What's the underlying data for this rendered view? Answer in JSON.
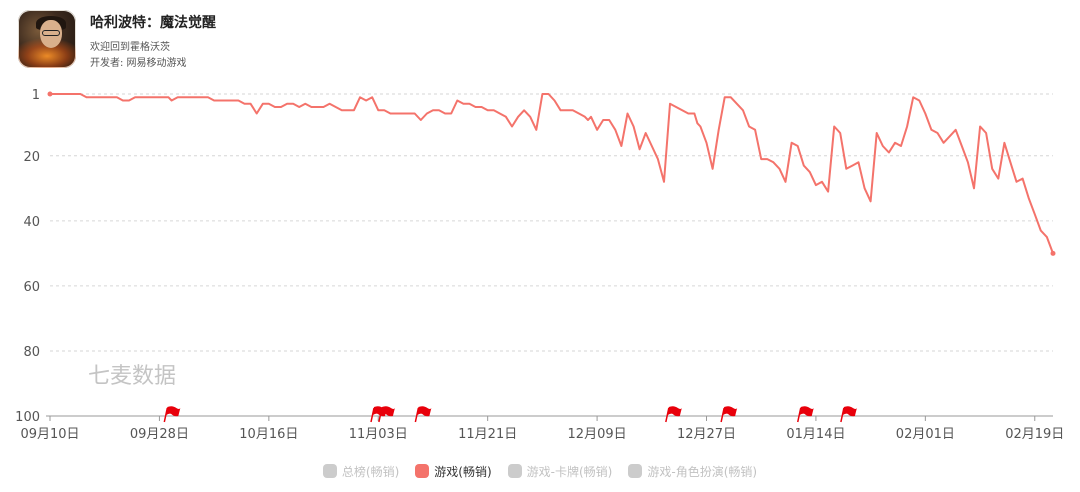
{
  "app": {
    "title": "哈利波特：魔法觉醒",
    "subtitle": "欢迎回到霍格沃茨",
    "developer": "开发者: 网易移动游戏"
  },
  "watermark": "七麦数据",
  "legend": [
    {
      "label": "总榜(畅销)",
      "color": "#cccccc",
      "active": false
    },
    {
      "label": "游戏(畅销)",
      "color": "#f4736b",
      "active": true
    },
    {
      "label": "游戏-卡牌(畅销)",
      "color": "#cccccc",
      "active": false
    },
    {
      "label": "游戏-角色扮演(畅销)",
      "color": "#cccccc",
      "active": false
    }
  ],
  "chart_data": {
    "type": "line",
    "title": "",
    "xlabel": "",
    "ylabel": "",
    "y_reversed": true,
    "ylim": [
      1,
      100
    ],
    "y_ticks": [
      1,
      20,
      40,
      60,
      80,
      100
    ],
    "x_range": [
      "09月10日",
      "02月22日"
    ],
    "x_ticks": [
      {
        "label": "09月10日",
        "day": 0
      },
      {
        "label": "09月28日",
        "day": 18
      },
      {
        "label": "10月16日",
        "day": 36
      },
      {
        "label": "11月03日",
        "day": 54
      },
      {
        "label": "11月21日",
        "day": 72
      },
      {
        "label": "12月09日",
        "day": 90
      },
      {
        "label": "12月27日",
        "day": 108
      },
      {
        "label": "01月14日",
        "day": 126
      },
      {
        "label": "02月01日",
        "day": 144
      },
      {
        "label": "02月19日",
        "day": 162
      }
    ],
    "line_color": "#f4736b",
    "grid": "dashed horizontal",
    "flag_color": "#e8000b",
    "flag_days": [
      19.3,
      53.3,
      54.6,
      60.6,
      101.8,
      110.9,
      123.5,
      130.6
    ],
    "series": [
      {
        "name": "游戏(畅销)",
        "points": [
          [
            0,
            1
          ],
          [
            1,
            1
          ],
          [
            2,
            1
          ],
          [
            3,
            1
          ],
          [
            4,
            1
          ],
          [
            5,
            1
          ],
          [
            6,
            2
          ],
          [
            7,
            2
          ],
          [
            8,
            2
          ],
          [
            9,
            2
          ],
          [
            10,
            2
          ],
          [
            11,
            2
          ],
          [
            12,
            3
          ],
          [
            13,
            3
          ],
          [
            14,
            2
          ],
          [
            15,
            2
          ],
          [
            16,
            2
          ],
          [
            17,
            2
          ],
          [
            18,
            2
          ],
          [
            19,
            2
          ],
          [
            19.5,
            2
          ],
          [
            20,
            3
          ],
          [
            21,
            2
          ],
          [
            22,
            2
          ],
          [
            23,
            2
          ],
          [
            24,
            2
          ],
          [
            25,
            2
          ],
          [
            26,
            2
          ],
          [
            27,
            3
          ],
          [
            28,
            3
          ],
          [
            29,
            3
          ],
          [
            30,
            3
          ],
          [
            31,
            3
          ],
          [
            32,
            4
          ],
          [
            33,
            4
          ],
          [
            34,
            7
          ],
          [
            35,
            4
          ],
          [
            36,
            4
          ],
          [
            37,
            5
          ],
          [
            38,
            5
          ],
          [
            39,
            4
          ],
          [
            40,
            4
          ],
          [
            41,
            5
          ],
          [
            42,
            4
          ],
          [
            43,
            5
          ],
          [
            44,
            5
          ],
          [
            45,
            5
          ],
          [
            46,
            4
          ],
          [
            47,
            5
          ],
          [
            48,
            6
          ],
          [
            49,
            6
          ],
          [
            50,
            6
          ],
          [
            51,
            2
          ],
          [
            52,
            3
          ],
          [
            53,
            2
          ],
          [
            54,
            6
          ],
          [
            55,
            6
          ],
          [
            56,
            7
          ],
          [
            57,
            7
          ],
          [
            58,
            7
          ],
          [
            59,
            7
          ],
          [
            60,
            7
          ],
          [
            61,
            9
          ],
          [
            62,
            7
          ],
          [
            63,
            6
          ],
          [
            64,
            6
          ],
          [
            65,
            7
          ],
          [
            66,
            7
          ],
          [
            67,
            3
          ],
          [
            68,
            4
          ],
          [
            69,
            4
          ],
          [
            70,
            5
          ],
          [
            70.5,
            5
          ],
          [
            71,
            5
          ],
          [
            72,
            6
          ],
          [
            73,
            6
          ],
          [
            74,
            7
          ],
          [
            75,
            8
          ],
          [
            76,
            11
          ],
          [
            77,
            8
          ],
          [
            78,
            6
          ],
          [
            79,
            8
          ],
          [
            80,
            12
          ],
          [
            81,
            1
          ],
          [
            82,
            1
          ],
          [
            83,
            3
          ],
          [
            84,
            6
          ],
          [
            85,
            6
          ],
          [
            86,
            6
          ],
          [
            87,
            7
          ],
          [
            88,
            8
          ],
          [
            88.5,
            9
          ],
          [
            89,
            8
          ],
          [
            90,
            12
          ],
          [
            91,
            9
          ],
          [
            92,
            9
          ],
          [
            93,
            12
          ],
          [
            94,
            17
          ],
          [
            95,
            7
          ],
          [
            96,
            11
          ],
          [
            97,
            18
          ],
          [
            98,
            13
          ],
          [
            99,
            17
          ],
          [
            100,
            21
          ],
          [
            101,
            28
          ],
          [
            102,
            4
          ],
          [
            103,
            5
          ],
          [
            104,
            6
          ],
          [
            105,
            7
          ],
          [
            106,
            7
          ],
          [
            106.5,
            10
          ],
          [
            107,
            11
          ],
          [
            108,
            16
          ],
          [
            109,
            24
          ],
          [
            110,
            12
          ],
          [
            111,
            2
          ],
          [
            112,
            2
          ],
          [
            113,
            4
          ],
          [
            114,
            6
          ],
          [
            115,
            11
          ],
          [
            116,
            12
          ],
          [
            117,
            21
          ],
          [
            118,
            21
          ],
          [
            119,
            22
          ],
          [
            120,
            24
          ],
          [
            121,
            28
          ],
          [
            122,
            16
          ],
          [
            123,
            17
          ],
          [
            124,
            23
          ],
          [
            125,
            25
          ],
          [
            126,
            29
          ],
          [
            127,
            28
          ],
          [
            128,
            31
          ],
          [
            129,
            11
          ],
          [
            130,
            13
          ],
          [
            131,
            24
          ],
          [
            132,
            23
          ],
          [
            133,
            22
          ],
          [
            134,
            30
          ],
          [
            135,
            34
          ],
          [
            136,
            13
          ],
          [
            137,
            17
          ],
          [
            138,
            19
          ],
          [
            139,
            16
          ],
          [
            140,
            17
          ],
          [
            141,
            11
          ],
          [
            142,
            2
          ],
          [
            143,
            3
          ],
          [
            144,
            7
          ],
          [
            145,
            12
          ],
          [
            146,
            13
          ],
          [
            147,
            16
          ],
          [
            148,
            14
          ],
          [
            149,
            12
          ],
          [
            150,
            17
          ],
          [
            151,
            22
          ],
          [
            152,
            30
          ],
          [
            153,
            11
          ],
          [
            154,
            13
          ],
          [
            155,
            24
          ],
          [
            156,
            27
          ],
          [
            157,
            16
          ],
          [
            158,
            22
          ],
          [
            159,
            28
          ],
          [
            160,
            27
          ],
          [
            161,
            33
          ],
          [
            162,
            38
          ],
          [
            163,
            43
          ],
          [
            164,
            45
          ],
          [
            165,
            50
          ]
        ]
      }
    ]
  }
}
